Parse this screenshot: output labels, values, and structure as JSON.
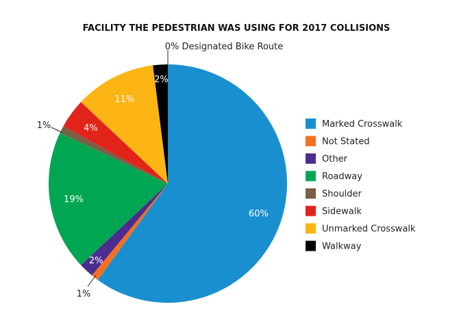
{
  "chart_data": {
    "type": "pie",
    "title": "FACILITY THE PEDESTRIAN WAS USING FOR 2017 COLLISIONS",
    "legend_position": "right",
    "slices": [
      {
        "name": "Marked Crosswalk",
        "value": 60,
        "label": "60%",
        "color": "#1a8fd0",
        "label_placement": "inside",
        "in_legend": true
      },
      {
        "name": "Not Stated",
        "value": 1,
        "label": "1%",
        "color": "#f36f21",
        "label_placement": "outside",
        "in_legend": true
      },
      {
        "name": "Other",
        "value": 2,
        "label": "2%",
        "color": "#4b2d8f",
        "label_placement": "inside",
        "in_legend": true
      },
      {
        "name": "Roadway",
        "value": 19,
        "label": "19%",
        "color": "#00a651",
        "label_placement": "inside",
        "in_legend": true
      },
      {
        "name": "Shoulder",
        "value": 1,
        "label": "1%",
        "color": "#7a6047",
        "label_placement": "outside",
        "in_legend": true
      },
      {
        "name": "Sidewalk",
        "value": 4,
        "label": "4%",
        "color": "#e2231a",
        "label_placement": "inside",
        "in_legend": true
      },
      {
        "name": "Unmarked Crosswalk",
        "value": 11,
        "label": "11%",
        "color": "#fdb515",
        "label_placement": "inside",
        "in_legend": true
      },
      {
        "name": "Walkway",
        "value": 2,
        "label": "2%",
        "color": "#000000",
        "label_placement": "inside",
        "in_legend": true
      },
      {
        "name": "Designated Bike Route",
        "value": 0,
        "label": "0% Designated Bike Route",
        "color": "#1a8fd0",
        "label_placement": "outside",
        "in_legend": false
      }
    ]
  }
}
